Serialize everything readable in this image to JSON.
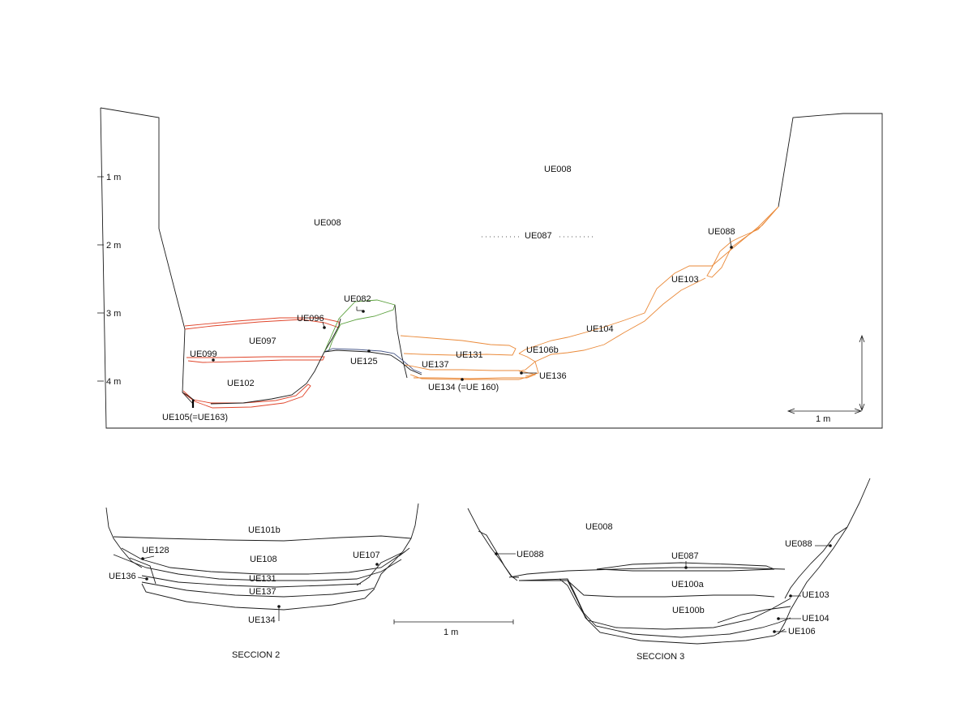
{
  "colors": {
    "ink": "#1a1a1a",
    "red": "#e0442a",
    "orange": "#ea8a3a",
    "green": "#5aa03c",
    "blue": "#4a5a8a"
  },
  "section_main": {
    "depth_ticks": [
      "1 m",
      "2 m",
      "3 m",
      "4 m"
    ],
    "scale_label": "1 m",
    "labels": {
      "ue008_top": "UE008",
      "ue008_left": "UE008",
      "ue087": "UE087",
      "ue088": "UE088",
      "ue103": "UE103",
      "ue104": "UE104",
      "ue082": "UE082",
      "ue096": "UE096",
      "ue097": "UE097",
      "ue099": "UE099",
      "ue102": "UE102",
      "ue125": "UE125",
      "ue131": "UE131",
      "ue106b": "UE106b",
      "ue137": "UE137",
      "ue136": "UE136",
      "ue134": "UE134 (=UE 160)",
      "ue105": "UE105(=UE163)"
    }
  },
  "section_2": {
    "title": "SECCION 2",
    "labels": {
      "ue101b": "UE101b",
      "ue128": "UE128",
      "ue108": "UE108",
      "ue107": "UE107",
      "ue136": "UE136",
      "ue131": "UE131",
      "ue137": "UE137",
      "ue134": "UE134"
    }
  },
  "section_3": {
    "title": "SECCION 3",
    "labels": {
      "ue008": "UE008",
      "ue088_left": "UE088",
      "ue088_right": "UE088",
      "ue087": "UE087",
      "ue100a": "UE100a",
      "ue103": "UE103",
      "ue100b": "UE100b",
      "ue104": "UE104",
      "ue106": "UE106"
    }
  },
  "scale_bar_bottom": {
    "label": "1 m"
  }
}
